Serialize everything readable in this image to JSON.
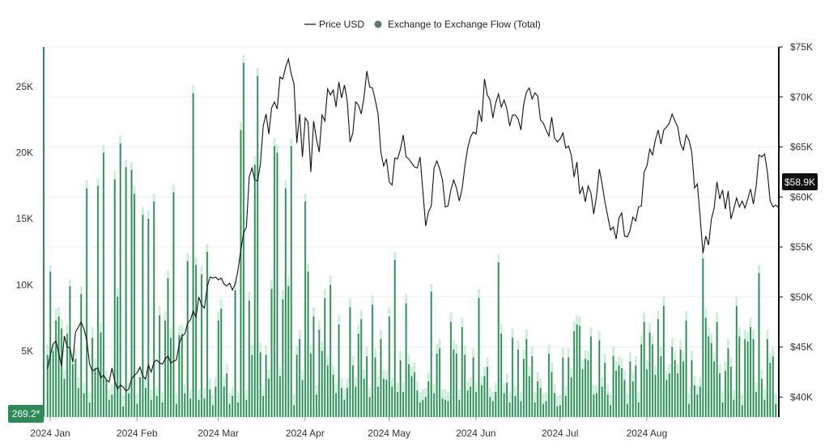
{
  "legend": {
    "price_label": "Price USD",
    "flow_label": "Exchange to Exchange Flow (Total)"
  },
  "badges": {
    "current_price": "$58.9K",
    "current_flow": "269.2*"
  },
  "colors": {
    "bar": "#2e8b57",
    "bar_light": "#6fcf97",
    "price_line": "#111111",
    "grid": "#f0f0f0",
    "left_axis": "#2e8b57",
    "right_axis": "#111111",
    "price_badge": "#111111",
    "flow_badge": "#2e8b57"
  },
  "chart_data": {
    "type": "bar",
    "grid": true,
    "legend_position": "top-center",
    "x_labels": [
      "2024 Jan",
      "2024 Feb",
      "2024 Mar",
      "2024 Apr",
      "2024 May",
      "2024 Jun",
      "2024 Jul",
      "2024 Aug"
    ],
    "left_axis": {
      "ticks": [
        5000,
        10000,
        15000,
        20000,
        25000
      ],
      "tick_labels": [
        "5K",
        "10K",
        "15K",
        "20K",
        "25K"
      ],
      "range": [
        0,
        28000
      ]
    },
    "right_axis": {
      "ticks": [
        40000,
        45000,
        50000,
        55000,
        60000,
        65000,
        70000,
        75000
      ],
      "tick_labels": [
        "$40K",
        "$45K",
        "$50K",
        "$55K",
        "$60K",
        "$65K",
        "$70K",
        "$75K"
      ],
      "range": [
        38000,
        75000
      ]
    },
    "series": [
      {
        "name": "Exchange to Exchange Flow (Total)",
        "type": "bar",
        "axis": "left",
        "values": [
          4700,
          11000,
          5000,
          7300,
          7600,
          6700,
          2900,
          6300,
          9900,
          4000,
          4400,
          2200,
          9300,
          1800,
          17300,
          1100,
          6000,
          3700,
          17500,
          6400,
          20000,
          2800,
          1300,
          1700,
          18000,
          9100,
          20700,
          800,
          18900,
          1800,
          18700,
          16900,
          1000,
          3000,
          15300,
          2200,
          15000,
          1300,
          16300,
          1600,
          7700,
          1100,
          7300,
          10500,
          6000,
          17000,
          1000,
          6200,
          6300,
          1800,
          11800,
          1400,
          24500,
          11500,
          1300,
          10800,
          1400,
          12500,
          2100,
          900,
          2300,
          7300,
          8200,
          2300,
          3300,
          1000,
          1600,
          9600,
          1100,
          21700,
          26800,
          1300,
          8800,
          4700,
          19100,
          25800,
          4900,
          1600,
          4700,
          2900,
          9700,
          20500,
          20000,
          3100,
          8900,
          17300,
          9900,
          20500,
          900,
          4700,
          5900,
          2800,
          16300,
          11000,
          4800,
          7600,
          1700,
          6600,
          5000,
          9000,
          3900,
          10000,
          3200,
          1800,
          7000,
          2200,
          1300,
          2200,
          8300,
          3900,
          2300,
          6300,
          7400,
          2900,
          4600,
          1500,
          8500,
          4500,
          2300,
          5900,
          2900,
          2800,
          7600,
          2300,
          11900,
          1900,
          4300,
          1900,
          8600,
          4000,
          3100,
          3400,
          2000,
          1100,
          1300,
          1500,
          2700,
          9500,
          1800,
          4800,
          5200,
          1400,
          1300,
          1200,
          7200,
          5100,
          4800,
          1300,
          6800,
          4700,
          2000,
          2300,
          4500,
          1900,
          9000,
          2400,
          3100,
          3800,
          1500,
          1200,
          1900,
          11700,
          6300,
          1800,
          2600,
          1100,
          6000,
          1600,
          5100,
          1200,
          4400,
          5900,
          3100,
          4600,
          1100,
          2700,
          2200,
          1000,
          1200,
          4800,
          3400,
          1800,
          800,
          900,
          4500,
          1600,
          4500,
          3000,
          6500,
          7000,
          6900,
          3600,
          4400,
          4300,
          6100,
          1700,
          1800,
          5800,
          2300,
          4100,
          1700,
          900,
          4600,
          3500,
          3900,
          3700,
          2800,
          1000,
          4200,
          2700,
          3900,
          1100,
          5500,
          7200,
          3600,
          6400,
          5500,
          3200,
          7400,
          4600,
          8400,
          2800,
          3300,
          5300,
          4300,
          3300,
          5100,
          4200,
          7300,
          1000,
          4300,
          2400,
          1700,
          2300,
          12000,
          7500,
          6100,
          5600,
          4200,
          7200,
          3300,
          1100,
          3500,
          5200,
          3800,
          1300,
          8400,
          6100,
          900,
          5900,
          5700,
          6800,
          5900,
          1900,
          10900,
          2900,
          1300,
          5900,
          4100,
          4600,
          1000
        ],
        "light_values": [
          5500,
          11500,
          5600,
          8200,
          8300,
          7400,
          3600,
          7000,
          10400,
          4800,
          5200,
          3000,
          9900,
          2600,
          17900,
          1900,
          6800,
          4400,
          18100,
          7100,
          20600,
          3500,
          2100,
          2500,
          18600,
          9800,
          21300,
          1600,
          19500,
          2600,
          19300,
          17500,
          1800,
          3700,
          15900,
          2900,
          15600,
          2100,
          16900,
          2300,
          8400,
          1900,
          8000,
          11100,
          6700,
          17600,
          1800,
          6900,
          7000,
          2500,
          12400,
          2100,
          25100,
          12100,
          2100,
          11400,
          2200,
          13100,
          2900,
          1700,
          3000,
          8000,
          8900,
          3000,
          4000,
          1800,
          2300,
          10300,
          1900,
          22300,
          27400,
          2100,
          9500,
          5500,
          19700,
          26400,
          5600,
          2300,
          5400,
          3600,
          10400,
          21100,
          20600,
          3800,
          9600,
          17900,
          10600,
          21100,
          1700,
          5400,
          6600,
          3500,
          16900,
          11600,
          5500,
          8300,
          2400,
          7300,
          5700,
          9700,
          4600,
          10700,
          3900,
          2500,
          7700,
          2900,
          2100,
          2900,
          9000,
          4600,
          3000,
          7000,
          8100,
          3600,
          5300,
          2200,
          9200,
          5200,
          3000,
          6600,
          3600,
          3500,
          8300,
          3000,
          12500,
          2600,
          5000,
          2600,
          9300,
          4700,
          3800,
          4100,
          2700,
          1900,
          2100,
          2200,
          3400,
          10100,
          2500,
          5500,
          5900,
          2100,
          2100,
          1900,
          7900,
          5800,
          5500,
          2100,
          7500,
          5400,
          2700,
          3000,
          5200,
          2600,
          9700,
          3100,
          3800,
          4500,
          2200,
          1900,
          2600,
          12300,
          7000,
          2500,
          3300,
          1900,
          6700,
          2300,
          5800,
          1900,
          5100,
          6600,
          3800,
          5300,
          1900,
          3400,
          2900,
          1800,
          1900,
          5500,
          4100,
          2500,
          1600,
          1700,
          5200,
          2300,
          5200,
          3700,
          7200,
          7700,
          7600,
          4300,
          5100,
          5000,
          6800,
          2400,
          2500,
          6500,
          3000,
          4800,
          2400,
          1700,
          5300,
          4200,
          4600,
          4400,
          3500,
          1800,
          4900,
          3400,
          4600,
          1900,
          6200,
          7900,
          4300,
          7100,
          6200,
          3900,
          8100,
          5300,
          9100,
          3500,
          4000,
          6000,
          5000,
          4000,
          5800,
          4900,
          8000,
          1800,
          5000,
          3100,
          2400,
          3000,
          12600,
          8200,
          6800,
          6300,
          4900,
          7900,
          4000,
          1900,
          4200,
          5900,
          4500,
          2100,
          9100,
          6800,
          1700,
          6600,
          6400,
          7500,
          6600,
          2600,
          11500,
          3600,
          2100,
          6600,
          4800,
          5300,
          1800
        ]
      },
      {
        "name": "Price USD",
        "type": "line",
        "axis": "right",
        "values": [
          42800,
          44200,
          45300,
          45600,
          44400,
          43100,
          46100,
          45000,
          44900,
          43500,
          46500,
          47000,
          47500,
          46800,
          45700,
          43300,
          42600,
          42800,
          42900,
          41900,
          42200,
          41700,
          41500,
          42900,
          41600,
          40800,
          41200,
          41000,
          40600,
          40800,
          41800,
          42200,
          42400,
          43000,
          42100,
          41800,
          43200,
          42500,
          43500,
          43700,
          43400,
          43300,
          43800,
          44100,
          43400,
          43600,
          43700,
          45300,
          46100,
          46300,
          47400,
          47700,
          48600,
          48000,
          50000,
          49200,
          48900,
          51000,
          52000,
          51900,
          52000,
          51700,
          51900,
          51300,
          51100,
          51400,
          50700,
          51300,
          52700,
          54700,
          56400,
          57000,
          62000,
          62900,
          61700,
          61600,
          63300,
          67100,
          68300,
          66300,
          68900,
          69500,
          68800,
          72000,
          71800,
          73000,
          73800,
          72300,
          71300,
          65400,
          68300,
          64000,
          67900,
          67500,
          62500,
          67600,
          65800,
          64500,
          68200,
          67600,
          70800,
          70200,
          70700,
          69000,
          71500,
          69900,
          71200,
          69600,
          65500,
          66400,
          69500,
          69200,
          68300,
          70000,
          72600,
          71000,
          70900,
          69700,
          68300,
          64500,
          63100,
          63800,
          61500,
          61200,
          63900,
          63800,
          64800,
          66200,
          64000,
          63800,
          63400,
          63000,
          62900,
          64000,
          60600,
          57100,
          58500,
          59100,
          62900,
          63600,
          62800,
          61700,
          59000,
          59100,
          60700,
          61700,
          60900,
          59600,
          60800,
          63100,
          64900,
          66000,
          66500,
          66300,
          68700,
          67500,
          71800,
          70200,
          69700,
          67900,
          69400,
          70300,
          69000,
          69700,
          68800,
          67100,
          68200,
          68200,
          67800,
          66700,
          69300,
          70500,
          70900,
          69800,
          70400,
          70100,
          67700,
          67400,
          66700,
          66100,
          68000,
          65900,
          65500,
          65800,
          66400,
          64900,
          65100,
          64200,
          62000,
          63500,
          60300,
          61000,
          59500,
          61100,
          60400,
          58300,
          60100,
          62800,
          61300,
          59500,
          58100,
          56700,
          57000,
          55800,
          57900,
          58400,
          56100,
          56000,
          56700,
          58000,
          57600,
          59000,
          59100,
          62500,
          63100,
          64800,
          64200,
          65700,
          66700,
          65300,
          66700,
          67000,
          67400,
          68300,
          67600,
          67000,
          65300,
          64700,
          66200,
          65700,
          64500,
          60900,
          61300,
          58000,
          54400,
          56100,
          55200,
          57800,
          58900,
          61500,
          59800,
          60700,
          58800,
          60600,
          57800,
          58800,
          59900,
          59000,
          59600,
          58900,
          59800,
          60800,
          59300,
          61100,
          64200,
          64000,
          64300,
          62500,
          59600,
          59000,
          59200,
          58900
        ]
      }
    ]
  }
}
